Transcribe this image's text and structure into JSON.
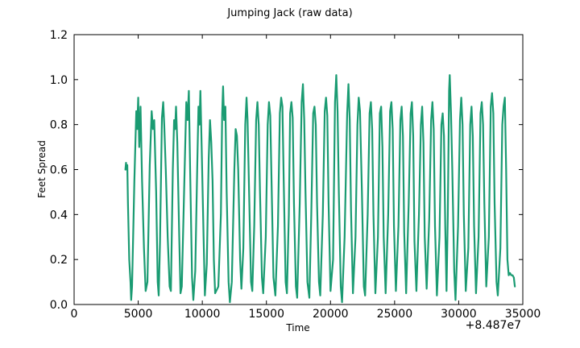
{
  "chart_data": {
    "type": "line",
    "title": "Jumping Jack (raw data)",
    "xlabel": "Time",
    "ylabel": "Feet Spread",
    "x_offset_label": "+8.487e7",
    "xlim": [
      0,
      35000
    ],
    "ylim": [
      0.0,
      1.2
    ],
    "xticks": [
      0,
      5000,
      10000,
      15000,
      20000,
      25000,
      30000,
      35000
    ],
    "xtick_labels": [
      "0",
      "5000",
      "10000",
      "15000",
      "20000",
      "25000",
      "30000",
      "35000"
    ],
    "yticks": [
      0.0,
      0.2,
      0.4,
      0.6,
      0.8,
      1.0,
      1.2
    ],
    "ytick_labels": [
      "0.0",
      "0.2",
      "0.4",
      "0.6",
      "0.8",
      "1.0",
      "1.2"
    ],
    "grid": false,
    "series": [
      {
        "name": "Feet Spread",
        "color": "#1a9b72",
        "points": [
          [
            4000,
            0.6
          ],
          [
            4050,
            0.63
          ],
          [
            4100,
            0.6
          ],
          [
            4150,
            0.62
          ],
          [
            4200,
            0.45
          ],
          [
            4300,
            0.2
          ],
          [
            4400,
            0.1
          ],
          [
            4450,
            0.02
          ],
          [
            4520,
            0.08
          ],
          [
            4700,
            0.55
          ],
          [
            4850,
            0.86
          ],
          [
            4920,
            0.78
          ],
          [
            5000,
            0.92
          ],
          [
            5080,
            0.7
          ],
          [
            5180,
            0.88
          ],
          [
            5300,
            0.55
          ],
          [
            5450,
            0.25
          ],
          [
            5580,
            0.06
          ],
          [
            5720,
            0.1
          ],
          [
            5900,
            0.62
          ],
          [
            6050,
            0.86
          ],
          [
            6150,
            0.78
          ],
          [
            6250,
            0.82
          ],
          [
            6400,
            0.5
          ],
          [
            6520,
            0.1
          ],
          [
            6600,
            0.04
          ],
          [
            6700,
            0.28
          ],
          [
            6850,
            0.83
          ],
          [
            6950,
            0.9
          ],
          [
            7030,
            0.8
          ],
          [
            7150,
            0.6
          ],
          [
            7300,
            0.3
          ],
          [
            7450,
            0.08
          ],
          [
            7550,
            0.06
          ],
          [
            7700,
            0.6
          ],
          [
            7800,
            0.82
          ],
          [
            7880,
            0.78
          ],
          [
            7950,
            0.88
          ],
          [
            8050,
            0.72
          ],
          [
            8200,
            0.3
          ],
          [
            8300,
            0.05
          ],
          [
            8400,
            0.08
          ],
          [
            8600,
            0.55
          ],
          [
            8750,
            0.9
          ],
          [
            8850,
            0.82
          ],
          [
            8950,
            0.95
          ],
          [
            9050,
            0.6
          ],
          [
            9200,
            0.12
          ],
          [
            9300,
            0.02
          ],
          [
            9450,
            0.15
          ],
          [
            9600,
            0.6
          ],
          [
            9700,
            0.88
          ],
          [
            9780,
            0.8
          ],
          [
            9850,
            0.95
          ],
          [
            9950,
            0.7
          ],
          [
            10100,
            0.3
          ],
          [
            10200,
            0.04
          ],
          [
            10350,
            0.18
          ],
          [
            10500,
            0.65
          ],
          [
            10600,
            0.82
          ],
          [
            10700,
            0.72
          ],
          [
            10800,
            0.55
          ],
          [
            10900,
            0.2
          ],
          [
            11000,
            0.05
          ],
          [
            11250,
            0.08
          ],
          [
            11450,
            0.4
          ],
          [
            11550,
            0.85
          ],
          [
            11620,
            0.97
          ],
          [
            11700,
            0.82
          ],
          [
            11800,
            0.88
          ],
          [
            11900,
            0.5
          ],
          [
            12050,
            0.1
          ],
          [
            12150,
            0.01
          ],
          [
            12300,
            0.1
          ],
          [
            12500,
            0.6
          ],
          [
            12600,
            0.78
          ],
          [
            12700,
            0.75
          ],
          [
            12800,
            0.6
          ],
          [
            12950,
            0.2
          ],
          [
            13050,
            0.07
          ],
          [
            13200,
            0.25
          ],
          [
            13350,
            0.8
          ],
          [
            13450,
            0.92
          ],
          [
            13530,
            0.82
          ],
          [
            13650,
            0.5
          ],
          [
            13800,
            0.1
          ],
          [
            13900,
            0.06
          ],
          [
            14050,
            0.35
          ],
          [
            14200,
            0.82
          ],
          [
            14300,
            0.9
          ],
          [
            14400,
            0.8
          ],
          [
            14500,
            0.5
          ],
          [
            14650,
            0.12
          ],
          [
            14750,
            0.05
          ],
          [
            14950,
            0.3
          ],
          [
            15100,
            0.8
          ],
          [
            15200,
            0.9
          ],
          [
            15300,
            0.84
          ],
          [
            15400,
            0.55
          ],
          [
            15550,
            0.12
          ],
          [
            15700,
            0.04
          ],
          [
            15900,
            0.35
          ],
          [
            16050,
            0.85
          ],
          [
            16150,
            0.92
          ],
          [
            16250,
            0.88
          ],
          [
            16350,
            0.55
          ],
          [
            16500,
            0.1
          ],
          [
            16600,
            0.05
          ],
          [
            16750,
            0.4
          ],
          [
            16850,
            0.85
          ],
          [
            16950,
            0.9
          ],
          [
            17050,
            0.83
          ],
          [
            17150,
            0.45
          ],
          [
            17300,
            0.08
          ],
          [
            17400,
            0.03
          ],
          [
            17600,
            0.45
          ],
          [
            17750,
            0.9
          ],
          [
            17850,
            0.98
          ],
          [
            17950,
            0.82
          ],
          [
            18050,
            0.5
          ],
          [
            18200,
            0.1
          ],
          [
            18350,
            0.03
          ],
          [
            18500,
            0.4
          ],
          [
            18650,
            0.85
          ],
          [
            18750,
            0.88
          ],
          [
            18850,
            0.8
          ],
          [
            18950,
            0.45
          ],
          [
            19100,
            0.1
          ],
          [
            19200,
            0.04
          ],
          [
            19400,
            0.4
          ],
          [
            19550,
            0.86
          ],
          [
            19650,
            0.92
          ],
          [
            19750,
            0.84
          ],
          [
            19850,
            0.45
          ],
          [
            20000,
            0.06
          ],
          [
            20200,
            0.2
          ],
          [
            20350,
            0.9
          ],
          [
            20450,
            1.02
          ],
          [
            20550,
            0.86
          ],
          [
            20650,
            0.5
          ],
          [
            20800,
            0.08
          ],
          [
            20900,
            0.01
          ],
          [
            21100,
            0.3
          ],
          [
            21300,
            0.85
          ],
          [
            21400,
            0.98
          ],
          [
            21500,
            0.82
          ],
          [
            21600,
            0.42
          ],
          [
            21750,
            0.05
          ],
          [
            21950,
            0.3
          ],
          [
            22100,
            0.8
          ],
          [
            22200,
            0.92
          ],
          [
            22300,
            0.86
          ],
          [
            22450,
            0.5
          ],
          [
            22600,
            0.08
          ],
          [
            22700,
            0.04
          ],
          [
            22900,
            0.4
          ],
          [
            23050,
            0.85
          ],
          [
            23150,
            0.9
          ],
          [
            23250,
            0.78
          ],
          [
            23350,
            0.4
          ],
          [
            23500,
            0.05
          ],
          [
            23700,
            0.3
          ],
          [
            23850,
            0.85
          ],
          [
            23950,
            0.88
          ],
          [
            24050,
            0.7
          ],
          [
            24150,
            0.3
          ],
          [
            24300,
            0.05
          ],
          [
            24500,
            0.4
          ],
          [
            24650,
            0.86
          ],
          [
            24750,
            0.9
          ],
          [
            24850,
            0.78
          ],
          [
            24950,
            0.35
          ],
          [
            25100,
            0.06
          ],
          [
            25300,
            0.35
          ],
          [
            25450,
            0.82
          ],
          [
            25550,
            0.88
          ],
          [
            25650,
            0.75
          ],
          [
            25750,
            0.32
          ],
          [
            25900,
            0.05
          ],
          [
            26100,
            0.45
          ],
          [
            26250,
            0.85
          ],
          [
            26350,
            0.9
          ],
          [
            26450,
            0.75
          ],
          [
            26550,
            0.28
          ],
          [
            26700,
            0.06
          ],
          [
            26900,
            0.4
          ],
          [
            27050,
            0.8
          ],
          [
            27150,
            0.88
          ],
          [
            27250,
            0.72
          ],
          [
            27350,
            0.3
          ],
          [
            27500,
            0.07
          ],
          [
            27700,
            0.38
          ],
          [
            27850,
            0.82
          ],
          [
            27950,
            0.9
          ],
          [
            28050,
            0.78
          ],
          [
            28150,
            0.35
          ],
          [
            28300,
            0.04
          ],
          [
            28500,
            0.3
          ],
          [
            28650,
            0.8
          ],
          [
            28750,
            0.85
          ],
          [
            28850,
            0.75
          ],
          [
            28950,
            0.35
          ],
          [
            29050,
            0.06
          ],
          [
            29150,
            0.4
          ],
          [
            29250,
            0.95
          ],
          [
            29300,
            1.02
          ],
          [
            29400,
            0.85
          ],
          [
            29500,
            0.6
          ],
          [
            29650,
            0.15
          ],
          [
            29750,
            0.02
          ],
          [
            29950,
            0.35
          ],
          [
            30100,
            0.82
          ],
          [
            30200,
            0.92
          ],
          [
            30300,
            0.8
          ],
          [
            30400,
            0.4
          ],
          [
            30550,
            0.06
          ],
          [
            30750,
            0.25
          ],
          [
            30900,
            0.8
          ],
          [
            31000,
            0.88
          ],
          [
            31100,
            0.75
          ],
          [
            31200,
            0.35
          ],
          [
            31350,
            0.05
          ],
          [
            31550,
            0.3
          ],
          [
            31700,
            0.85
          ],
          [
            31800,
            0.9
          ],
          [
            31900,
            0.8
          ],
          [
            32000,
            0.45
          ],
          [
            32150,
            0.08
          ],
          [
            32350,
            0.3
          ],
          [
            32500,
            0.88
          ],
          [
            32600,
            0.94
          ],
          [
            32700,
            0.85
          ],
          [
            32800,
            0.45
          ],
          [
            32950,
            0.1
          ],
          [
            33050,
            0.04
          ],
          [
            33250,
            0.25
          ],
          [
            33400,
            0.8
          ],
          [
            33500,
            0.88
          ],
          [
            33600,
            0.92
          ],
          [
            33700,
            0.6
          ],
          [
            33800,
            0.2
          ],
          [
            33900,
            0.13
          ],
          [
            34000,
            0.14
          ],
          [
            34100,
            0.13
          ],
          [
            34200,
            0.13
          ],
          [
            34300,
            0.12
          ],
          [
            34380,
            0.08
          ]
        ]
      }
    ]
  }
}
